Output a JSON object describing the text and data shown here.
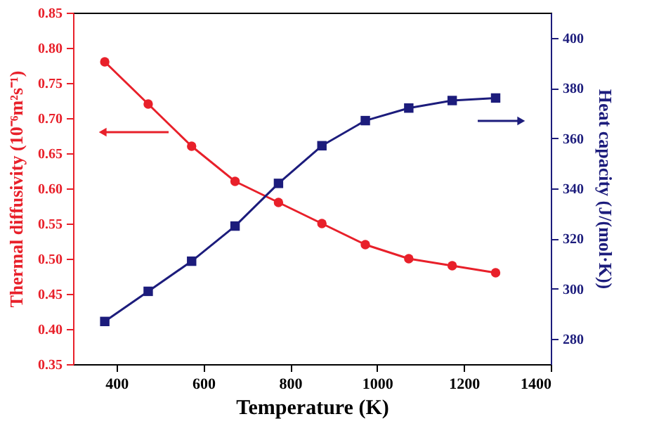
{
  "chart_data": {
    "type": "line",
    "xlabel": "Temperature (K)",
    "ylabel": "Thermal diffusivity (10⁻⁶m²s⁻¹)",
    "y2label": "Heat capacity (J/(mol·K))",
    "x": [
      373,
      473,
      573,
      673,
      773,
      873,
      973,
      1073,
      1173,
      1273
    ],
    "series": [
      {
        "color": "#e8202a",
        "marker": "circle",
        "values": [
          0.78,
          0.72,
          0.66,
          0.61,
          0.58,
          0.55,
          0.52,
          0.5,
          0.49,
          0.48
        ]
      },
      {
        "color": "#1c1c7c",
        "marker": "square",
        "axis": "y2",
        "values": [
          287,
          299,
          311,
          325,
          342,
          357,
          367,
          372,
          375,
          376
        ]
      }
    ],
    "xlim": [
      300,
      1400
    ],
    "xticks": [
      400,
      600,
      800,
      1000,
      1200,
      1400
    ],
    "ylim": [
      0.35,
      0.85
    ],
    "yticks": [
      0.35,
      {
        "value": 0.4,
        "label": "0.40"
      },
      0.45,
      {
        "value": 0.5,
        "label": "0.50"
      },
      0.55,
      {
        "value": 0.6,
        "label": "0.60"
      },
      0.65,
      {
        "value": 0.7,
        "label": "0.70"
      },
      0.75,
      {
        "value": 0.8,
        "label": "0.80"
      },
      0.85
    ],
    "y2lim": [
      270,
      410
    ],
    "y2ticks": [
      280,
      300,
      320,
      340,
      360,
      380,
      400
    ],
    "grid": false,
    "line_style": "solid"
  }
}
